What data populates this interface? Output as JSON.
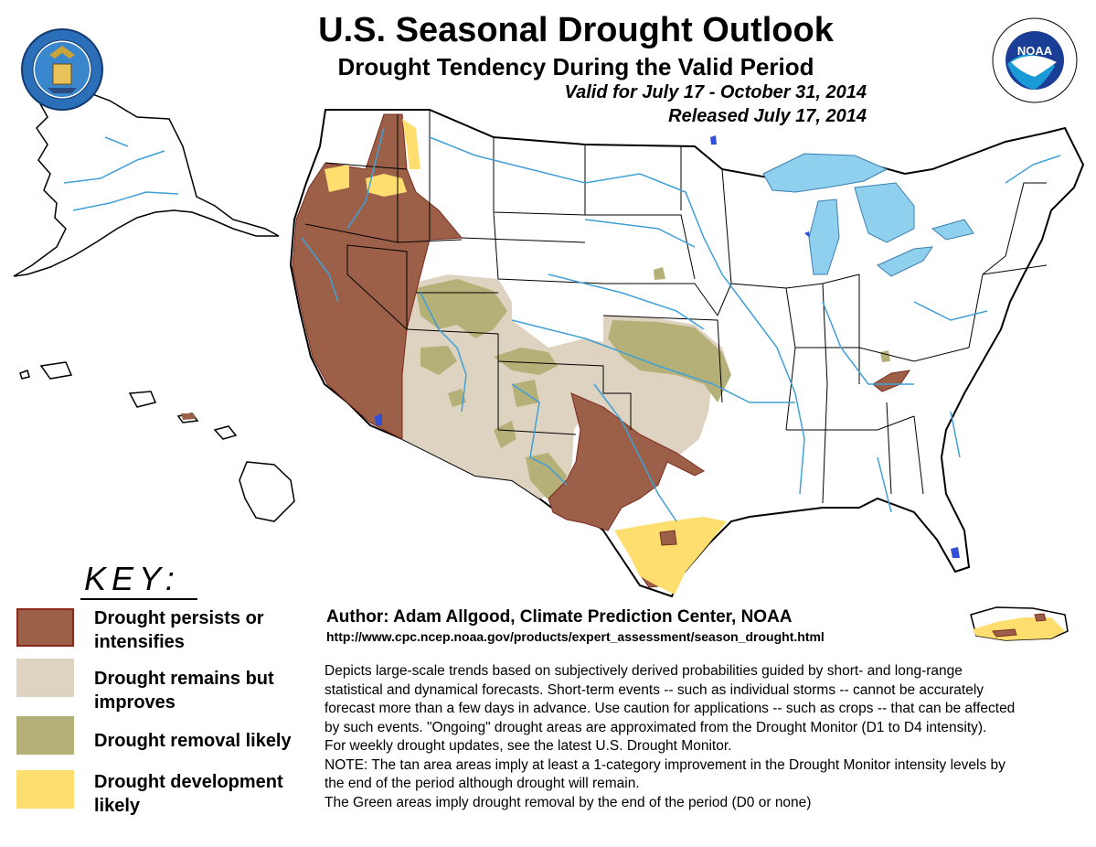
{
  "header": {
    "title": "U.S. Seasonal Drought Outlook",
    "subtitle": "Drought Tendency During the Valid Period",
    "valid": "Valid for July 17 - October 31, 2014",
    "released": "Released July 17, 2014"
  },
  "logos": {
    "commerce_seal": "DEPARTMENT OF COMMERCE • UNITED STATES OF AMERICA",
    "noaa_seal": "NATIONAL OCEANIC AND ATMOSPHERIC ADMINISTRATION • U.S. DEPARTMENT OF COMMERCE",
    "noaa_text": "NOAA"
  },
  "key": {
    "title": "KEY:",
    "items": [
      {
        "label": "Drought persists or intensifies",
        "color": "#9c5f48"
      },
      {
        "label": "Drought remains but improves",
        "color": "#ddd3c0"
      },
      {
        "label": "Drought removal likely",
        "color": "#b5b078"
      },
      {
        "label": "Drought development likely",
        "color": "#fdde6e"
      }
    ]
  },
  "colors": {
    "persists": "#9c5f48",
    "improves": "#ddd3c0",
    "removal": "#b5b078",
    "development": "#fdde6e",
    "great_lakes": "#8fd0ef",
    "rivers": "#3fa0d8",
    "lakes": "#3050d8"
  },
  "credits": {
    "author": "Author: Adam Allgood, Climate Prediction Center, NOAA",
    "url": "http://www.cpc.ncep.noaa.gov/products/expert_assessment/season_drought.html"
  },
  "description": {
    "main": "Depicts large-scale trends based on subjectively derived probabilities guided by short- and long-range statistical and dynamical forecasts. Short-term events -- such as individual storms -- cannot be accurately forecast more than a few days in advance. Use caution for applications -- such as crops -- that can be affected by such events. \"Ongoing\" drought areas are approximated from the Drought Monitor (D1 to D4 intensity).",
    "weekly": "For weekly drought updates, see the latest U.S. Drought Monitor.",
    "note": "NOTE: The tan area areas imply at least a 1-category improvement in the Drought Monitor intensity levels by the end of the period although drought will remain.",
    "green": "The Green areas imply drought removal by the end of the period (D0 or none)"
  }
}
